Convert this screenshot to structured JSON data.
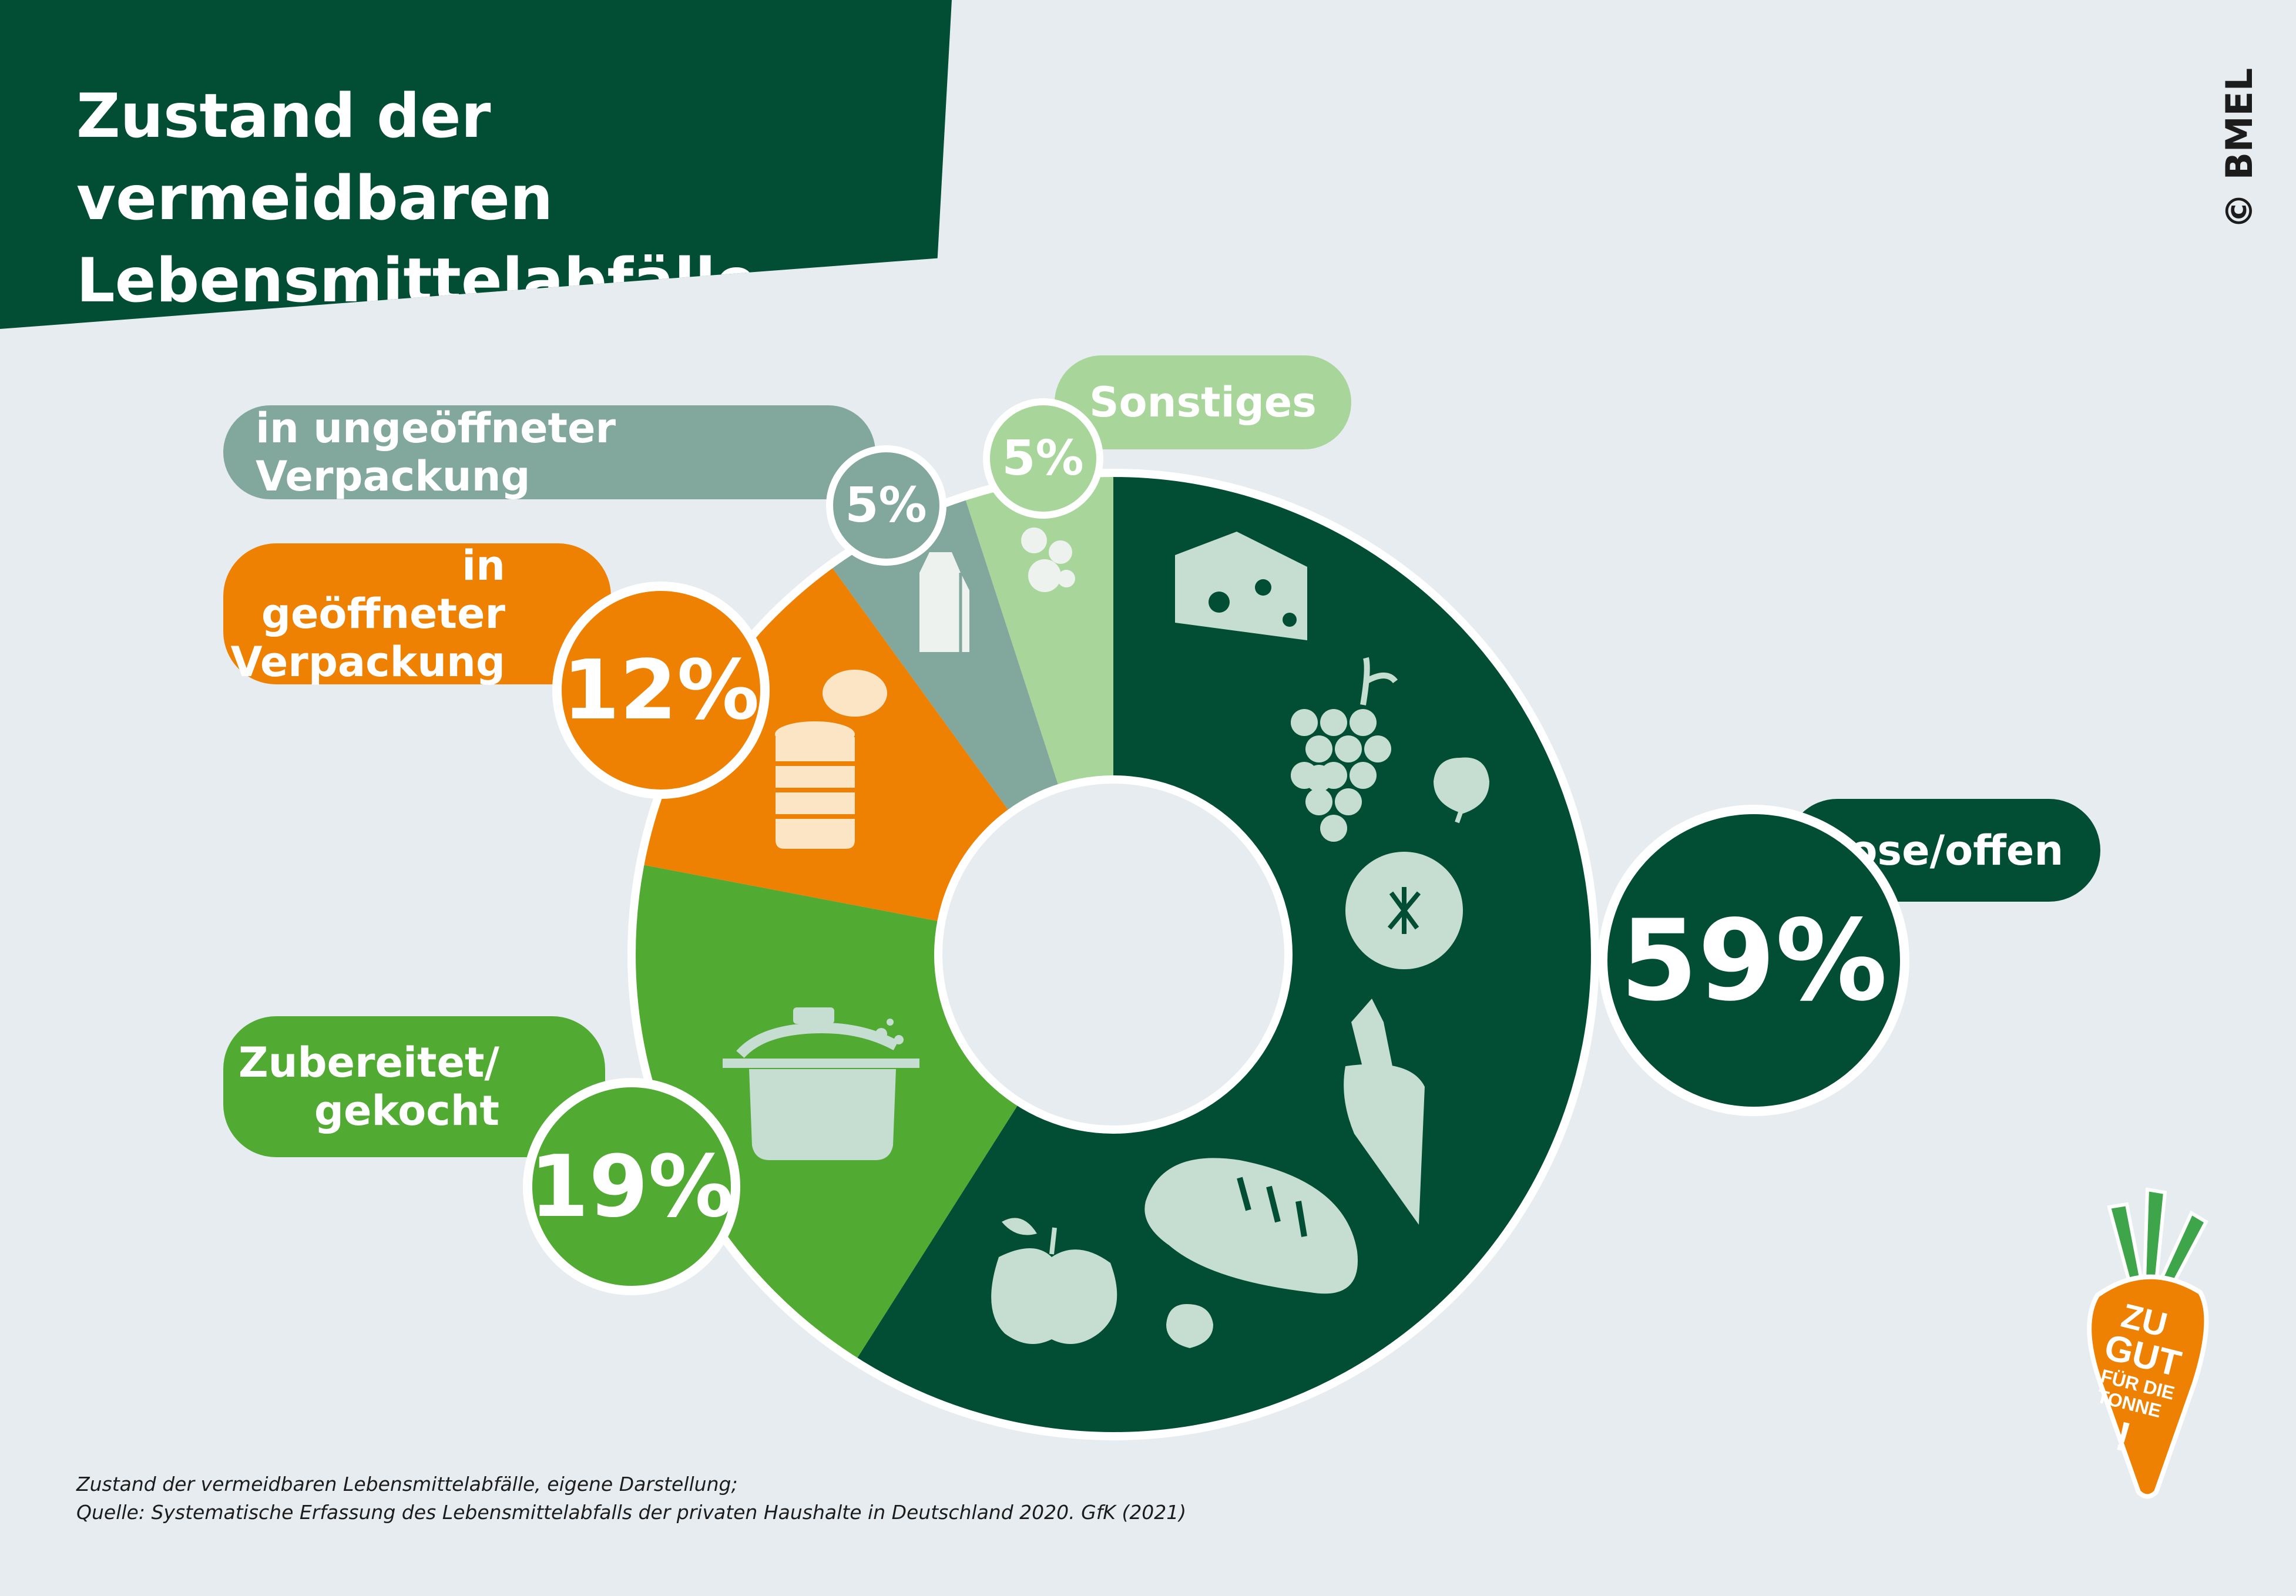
{
  "title": "Zustand der vermeidbaren\nLebensmittelabfälle",
  "copyright": "© BMEL",
  "source_lines": [
    "Zustand der vermeidbaren Lebensmittelabfälle, eigene Darstellung;",
    "Quelle: Systematische Erfassung des Lebensmittelabfalls der privaten Haushalte in Deutschland 2020. GfK (2021)"
  ],
  "logo": {
    "text": "ZU GUT FÜR DIE TONNE !"
  },
  "colors": {
    "lose_offen": "#024e34",
    "zubereitet": "#51ab32",
    "geoeffnet": "#ee8101",
    "ungeoeffnet": "#82a79c",
    "sonstiges": "#a8d69a",
    "icon_light": "#c6ddd2",
    "background": "#e7ecf0"
  },
  "chart_data": {
    "type": "pie",
    "donut": true,
    "title": "Zustand der vermeidbaren Lebensmittelabfälle",
    "categories": [
      "Lose/offen",
      "Zubereitet/\ngekocht",
      "in geöffneter\nVerpackung",
      "in ungeöffneter Verpackung",
      "Sonstiges"
    ],
    "values": [
      59,
      19,
      12,
      5,
      5
    ],
    "value_labels": [
      "59%",
      "19%",
      "12%",
      "5%",
      "5%"
    ],
    "icons": [
      [
        "cheese-icon",
        "grapes-icon",
        "radish-icon",
        "tomato-icon",
        "carrot-icon",
        "bread-icon",
        "apple-icon",
        "radish-icon"
      ],
      [
        "cooking-pot-icon"
      ],
      [
        "open-can-icon"
      ],
      [
        "milk-carton-icon"
      ],
      [
        "mushrooms-icon"
      ]
    ]
  }
}
